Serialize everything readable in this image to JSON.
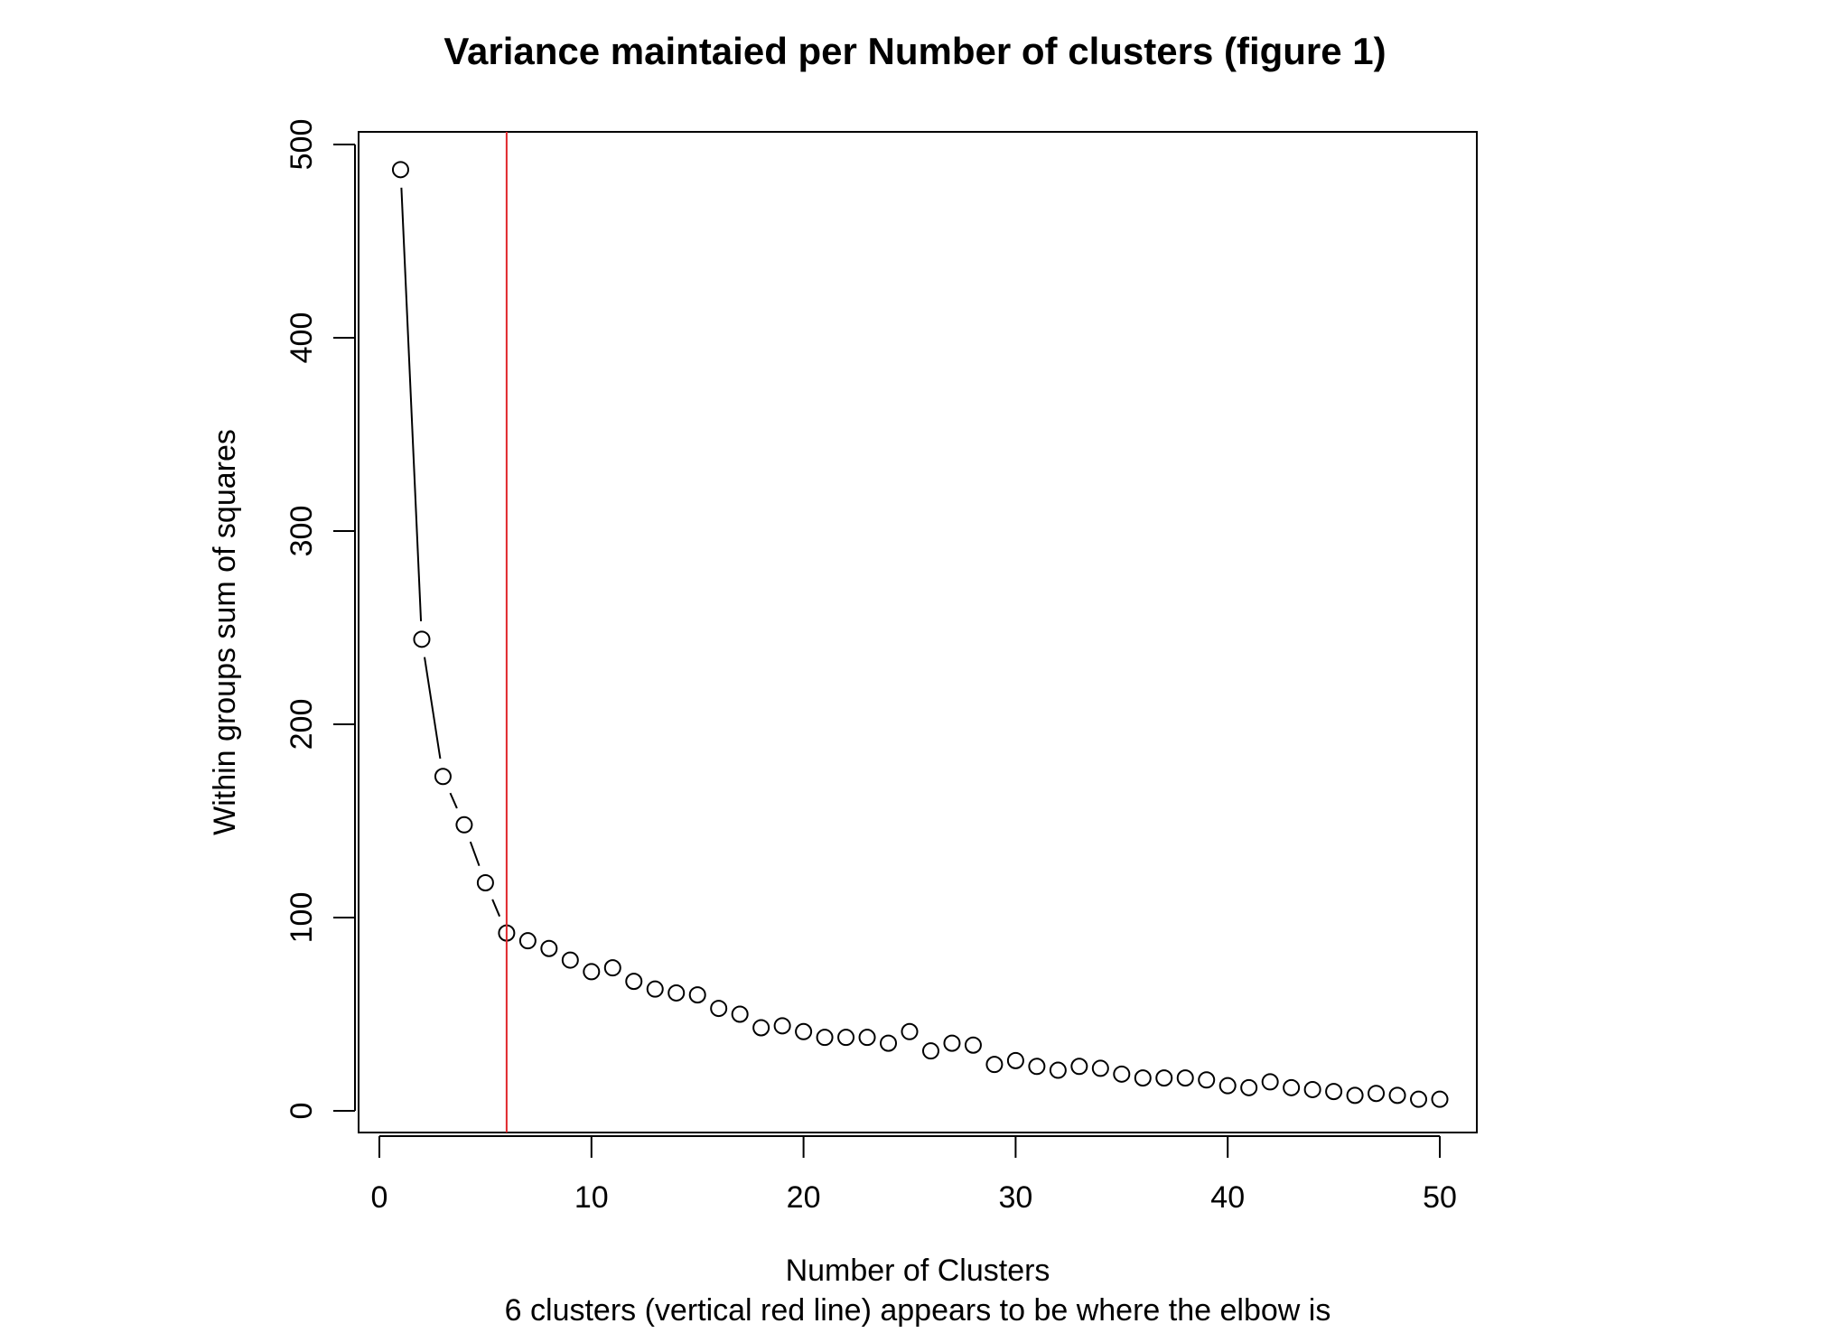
{
  "chart_data": {
    "type": "line",
    "title": "Variance maintaied per Number of clusters (figure 1)",
    "xlabel": "Number of Clusters",
    "subtitle": "6 clusters (vertical red line) appears to be where the elbow is",
    "ylabel": "Within groups sum of squares",
    "xlim": [
      0,
      50
    ],
    "ylim": [
      0,
      500
    ],
    "x_ticks": [
      "0",
      "10",
      "20",
      "30",
      "40",
      "50"
    ],
    "y_ticks": [
      "0",
      "100",
      "200",
      "300",
      "400",
      "500"
    ],
    "grid": false,
    "series": [
      {
        "x": [
          1,
          2,
          3,
          4,
          5,
          6,
          7,
          8,
          9,
          10,
          11,
          12,
          13,
          14,
          15,
          16,
          17,
          18,
          19,
          20,
          21,
          22,
          23,
          24,
          25,
          26,
          27,
          28,
          29,
          30,
          31,
          32,
          33,
          34,
          35,
          36,
          37,
          38,
          39,
          40,
          41,
          42,
          43,
          44,
          45,
          46,
          47,
          48,
          49,
          50
        ],
        "values": [
          487,
          244,
          173,
          148,
          118,
          92,
          88,
          84,
          78,
          72,
          74,
          67,
          63,
          61,
          60,
          53,
          50,
          43,
          44,
          41,
          38,
          38,
          38,
          35,
          41,
          31,
          35,
          34,
          24,
          26,
          23,
          21,
          23,
          22,
          19,
          17,
          17,
          17,
          16,
          13,
          12,
          15,
          12,
          11,
          10,
          8,
          9,
          8,
          6,
          6
        ]
      }
    ],
    "reference_line": {
      "x": 6,
      "color": "#e0262b"
    },
    "colors": {
      "line": "#000000",
      "points": "#000000",
      "reference": "#e0262b",
      "background": "#ffffff"
    }
  }
}
